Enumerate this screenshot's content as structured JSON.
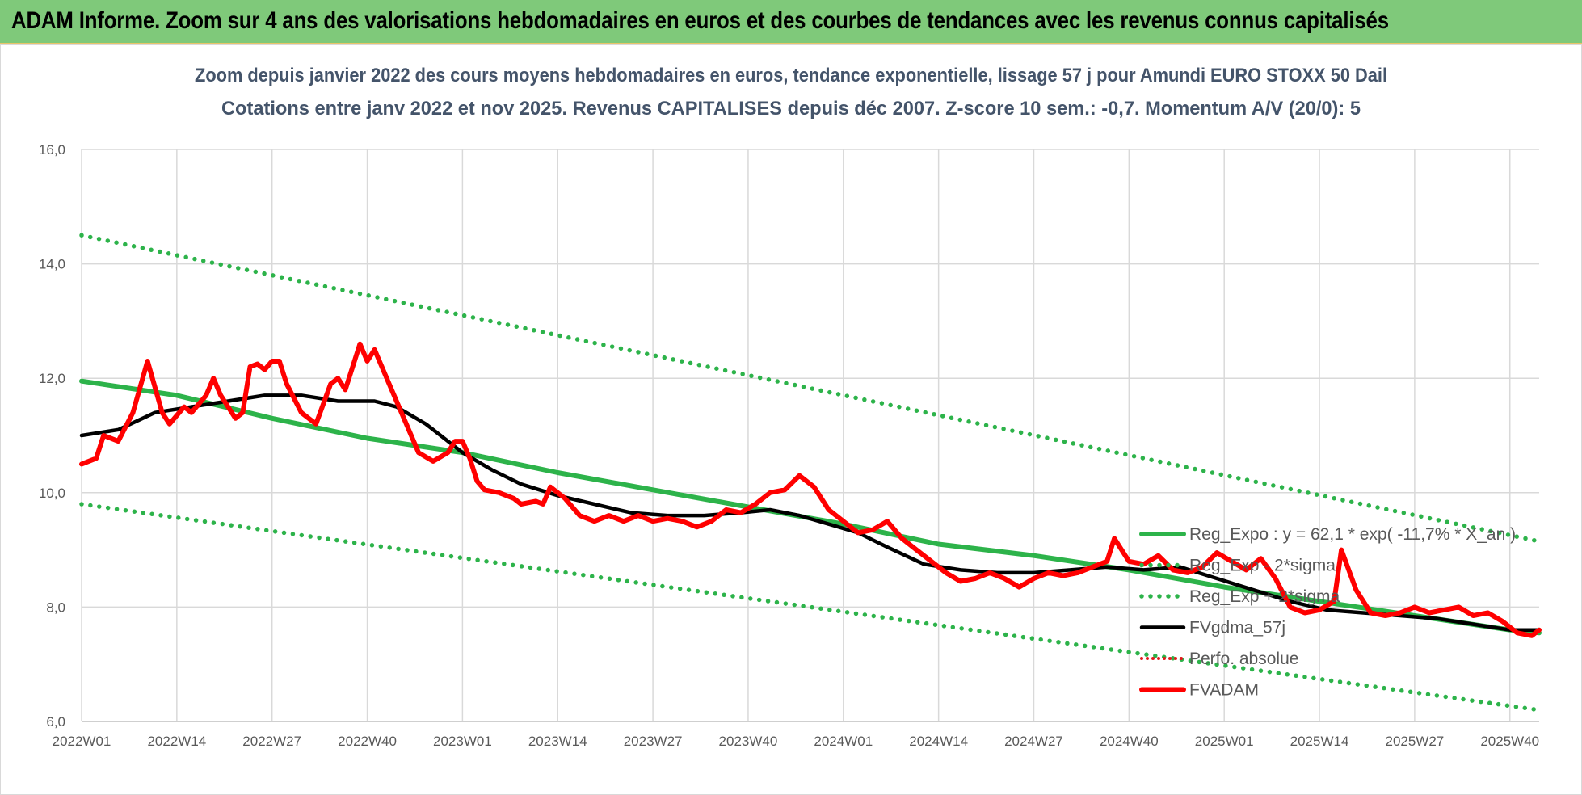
{
  "banner": {
    "title": "ADAM Informe. Zoom sur 4 ans des valorisations hebdomadaires en euros et des courbes de tendances avec les revenus connus capitalisés"
  },
  "chart_data": {
    "type": "line",
    "title": "Zoom depuis janvier 2022 des cours moyens hebdomadaires en euros, tendance exponentielle, lissage 57 j pour Amundi EURO STOXX 50 Dail",
    "subtitle": "Cotations entre janv 2022 et nov 2025. Revenus CAPITALISES depuis déc 2007. Z-score 10 sem.: -0,7. Momentum A/V (20/0): 5",
    "xlabel": "",
    "ylabel": "",
    "ylim": [
      6,
      16
    ],
    "y_ticks": [
      "6,0",
      "8,0",
      "10,0",
      "12,0",
      "14,0",
      "16,0"
    ],
    "x_tick_labels": [
      "2022W01",
      "2022W14",
      "2022W27",
      "2022W40",
      "2023W01",
      "2023W14",
      "2023W27",
      "2023W40",
      "2024W01",
      "2024W14",
      "2024W27",
      "2024W40",
      "2025W01",
      "2025W14",
      "2025W27",
      "2025W40"
    ],
    "grid": true,
    "legend": [
      "Reg_Expo : y = 62,1 * exp( -11,7% * X_an )",
      "Reg_Exp - 2*sigma",
      "Reg_Exp + 2*sigma",
      "FVgdma_57j",
      "Perfo. absolue",
      "FVADAM"
    ],
    "colors": {
      "regression": "#2db34a",
      "band": "#2db34a",
      "fvgdma": "#000000",
      "perfo": "#e31a1c",
      "fvadam": "#ff0000"
    },
    "week_step": 13,
    "series": [
      {
        "name": "Reg_Expo : y = 62,1 * exp( -11,7% * X_an )",
        "style": "solid",
        "points": [
          [
            0,
            11.95
          ],
          [
            13,
            11.7
          ],
          [
            26,
            11.3
          ],
          [
            39,
            10.95
          ],
          [
            52,
            10.7
          ],
          [
            65,
            10.35
          ],
          [
            78,
            10.05
          ],
          [
            91,
            9.75
          ],
          [
            104,
            9.45
          ],
          [
            117,
            9.1
          ],
          [
            130,
            8.9
          ],
          [
            143,
            8.65
          ],
          [
            156,
            8.35
          ],
          [
            169,
            8.1
          ],
          [
            182,
            7.85
          ],
          [
            195,
            7.6
          ],
          [
            199,
            7.55
          ]
        ]
      },
      {
        "name": "Reg_Exp - 2*sigma",
        "style": "dotted",
        "points": [
          [
            0,
            9.8
          ],
          [
            199,
            6.2
          ]
        ]
      },
      {
        "name": "Reg_Exp + 2*sigma",
        "style": "dotted",
        "points": [
          [
            0,
            14.5
          ],
          [
            199,
            9.15
          ]
        ]
      },
      {
        "name": "FVgdma_57j",
        "style": "solid",
        "points": [
          [
            0,
            11.0
          ],
          [
            5,
            11.1
          ],
          [
            10,
            11.4
          ],
          [
            15,
            11.5
          ],
          [
            20,
            11.6
          ],
          [
            25,
            11.7
          ],
          [
            30,
            11.7
          ],
          [
            35,
            11.6
          ],
          [
            40,
            11.6
          ],
          [
            43,
            11.5
          ],
          [
            47,
            11.2
          ],
          [
            52,
            10.7
          ],
          [
            56,
            10.4
          ],
          [
            60,
            10.15
          ],
          [
            65,
            9.95
          ],
          [
            70,
            9.8
          ],
          [
            75,
            9.65
          ],
          [
            80,
            9.6
          ],
          [
            85,
            9.6
          ],
          [
            90,
            9.65
          ],
          [
            94,
            9.7
          ],
          [
            98,
            9.6
          ],
          [
            102,
            9.45
          ],
          [
            106,
            9.3
          ],
          [
            110,
            9.05
          ],
          [
            115,
            8.75
          ],
          [
            120,
            8.65
          ],
          [
            125,
            8.6
          ],
          [
            130,
            8.6
          ],
          [
            135,
            8.65
          ],
          [
            140,
            8.7
          ],
          [
            145,
            8.65
          ],
          [
            150,
            8.7
          ],
          [
            155,
            8.5
          ],
          [
            160,
            8.3
          ],
          [
            165,
            8.1
          ],
          [
            170,
            7.95
          ],
          [
            175,
            7.9
          ],
          [
            180,
            7.85
          ],
          [
            185,
            7.8
          ],
          [
            190,
            7.7
          ],
          [
            195,
            7.6
          ],
          [
            199,
            7.6
          ]
        ]
      },
      {
        "name": "Perfo. absolue",
        "style": "dotted",
        "points": []
      },
      {
        "name": "FVADAM",
        "style": "solid",
        "points": [
          [
            0,
            10.5
          ],
          [
            2,
            10.6
          ],
          [
            3,
            11.0
          ],
          [
            5,
            10.9
          ],
          [
            7,
            11.4
          ],
          [
            9,
            12.3
          ],
          [
            11,
            11.4
          ],
          [
            12,
            11.2
          ],
          [
            14,
            11.5
          ],
          [
            15,
            11.4
          ],
          [
            17,
            11.7
          ],
          [
            18,
            12.0
          ],
          [
            19,
            11.7
          ],
          [
            21,
            11.3
          ],
          [
            22,
            11.4
          ],
          [
            23,
            12.2
          ],
          [
            24,
            12.25
          ],
          [
            25,
            12.15
          ],
          [
            26,
            12.3
          ],
          [
            27,
            12.3
          ],
          [
            28,
            11.9
          ],
          [
            30,
            11.4
          ],
          [
            32,
            11.2
          ],
          [
            34,
            11.9
          ],
          [
            35,
            12.0
          ],
          [
            36,
            11.8
          ],
          [
            38,
            12.6
          ],
          [
            39,
            12.3
          ],
          [
            40,
            12.5
          ],
          [
            42,
            11.9
          ],
          [
            44,
            11.3
          ],
          [
            46,
            10.7
          ],
          [
            48,
            10.55
          ],
          [
            50,
            10.7
          ],
          [
            51,
            10.9
          ],
          [
            52,
            10.9
          ],
          [
            53,
            10.6
          ],
          [
            54,
            10.2
          ],
          [
            55,
            10.05
          ],
          [
            57,
            10.0
          ],
          [
            59,
            9.9
          ],
          [
            60,
            9.8
          ],
          [
            62,
            9.85
          ],
          [
            63,
            9.8
          ],
          [
            64,
            10.1
          ],
          [
            66,
            9.9
          ],
          [
            68,
            9.6
          ],
          [
            70,
            9.5
          ],
          [
            72,
            9.6
          ],
          [
            74,
            9.5
          ],
          [
            76,
            9.6
          ],
          [
            78,
            9.5
          ],
          [
            80,
            9.55
          ],
          [
            82,
            9.5
          ],
          [
            84,
            9.4
          ],
          [
            86,
            9.5
          ],
          [
            88,
            9.7
          ],
          [
            90,
            9.65
          ],
          [
            92,
            9.8
          ],
          [
            94,
            10.0
          ],
          [
            96,
            10.05
          ],
          [
            98,
            10.3
          ],
          [
            100,
            10.1
          ],
          [
            102,
            9.7
          ],
          [
            104,
            9.5
          ],
          [
            106,
            9.3
          ],
          [
            108,
            9.35
          ],
          [
            110,
            9.5
          ],
          [
            112,
            9.2
          ],
          [
            114,
            9.0
          ],
          [
            116,
            8.8
          ],
          [
            118,
            8.6
          ],
          [
            120,
            8.45
          ],
          [
            122,
            8.5
          ],
          [
            124,
            8.6
          ],
          [
            126,
            8.5
          ],
          [
            128,
            8.35
          ],
          [
            130,
            8.5
          ],
          [
            132,
            8.6
          ],
          [
            134,
            8.55
          ],
          [
            136,
            8.6
          ],
          [
            138,
            8.7
          ],
          [
            140,
            8.8
          ],
          [
            141,
            9.2
          ],
          [
            143,
            8.8
          ],
          [
            145,
            8.75
          ],
          [
            147,
            8.9
          ],
          [
            149,
            8.65
          ],
          [
            151,
            8.6
          ],
          [
            153,
            8.7
          ],
          [
            155,
            8.95
          ],
          [
            157,
            8.8
          ],
          [
            159,
            8.65
          ],
          [
            161,
            8.85
          ],
          [
            163,
            8.5
          ],
          [
            165,
            8.0
          ],
          [
            167,
            7.9
          ],
          [
            169,
            7.95
          ],
          [
            171,
            8.1
          ],
          [
            172,
            9.0
          ],
          [
            174,
            8.3
          ],
          [
            176,
            7.9
          ],
          [
            178,
            7.85
          ],
          [
            180,
            7.9
          ],
          [
            182,
            8.0
          ],
          [
            184,
            7.9
          ],
          [
            186,
            7.95
          ],
          [
            188,
            8.0
          ],
          [
            190,
            7.85
          ],
          [
            192,
            7.9
          ],
          [
            194,
            7.75
          ],
          [
            196,
            7.55
          ],
          [
            198,
            7.5
          ],
          [
            199,
            7.6
          ]
        ]
      }
    ]
  }
}
